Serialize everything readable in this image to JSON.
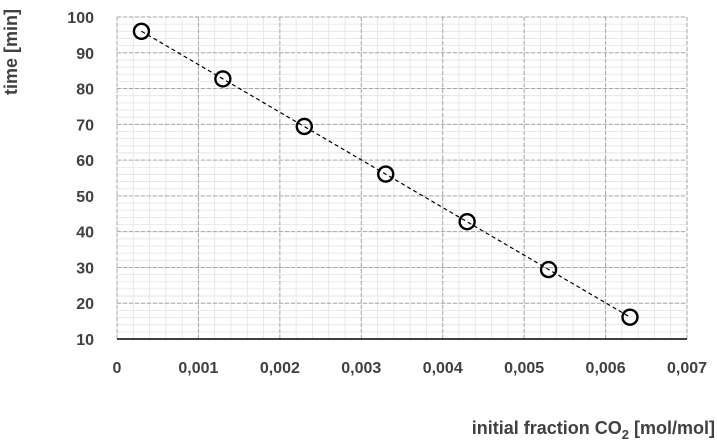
{
  "chart_data": {
    "type": "scatter",
    "xlabel_main": "initial fraction CO",
    "xlabel_sub": "2",
    "xlabel_unit": " [mol/mol]",
    "ylabel": "time [min]",
    "xlim": [
      0,
      0.007
    ],
    "ylim": [
      10,
      100
    ],
    "x_ticks": [
      0,
      0.001,
      0.002,
      0.003,
      0.004,
      0.005,
      0.006,
      0.007
    ],
    "x_tick_labels": [
      "0",
      "0,001",
      "0,002",
      "0,003",
      "0,004",
      "0,005",
      "0,006",
      "0,007"
    ],
    "y_ticks": [
      10,
      20,
      30,
      40,
      50,
      60,
      70,
      80,
      90,
      100
    ],
    "y_tick_labels": [
      "10",
      "20",
      "30",
      "40",
      "50",
      "60",
      "70",
      "80",
      "90",
      "100"
    ],
    "grid": true,
    "marker": "open-circle",
    "trendline": "linear, dashed",
    "points": [
      {
        "x": 0.0003,
        "y": 96
      },
      {
        "x": 0.0013,
        "y": 82.7
      },
      {
        "x": 0.0023,
        "y": 69.4
      },
      {
        "x": 0.0033,
        "y": 56.1
      },
      {
        "x": 0.0043,
        "y": 42.8
      },
      {
        "x": 0.0053,
        "y": 29.4
      },
      {
        "x": 0.0063,
        "y": 16.1
      }
    ]
  }
}
